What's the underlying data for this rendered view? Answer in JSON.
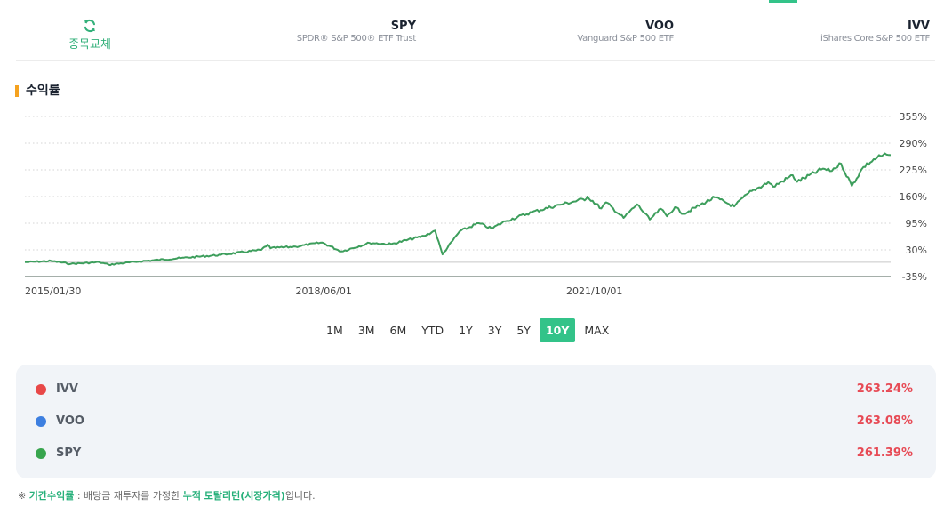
{
  "header": {
    "swap_label": "종목교체",
    "etfs": [
      {
        "ticker": "SPY",
        "name": "SPDR® S&P 500® ETF Trust"
      },
      {
        "ticker": "VOO",
        "name": "Vanguard S&P 500 ETF"
      },
      {
        "ticker": "IVV",
        "name": "iShares Core S&P 500 ETF"
      }
    ]
  },
  "section_title": "수익률",
  "chart_data": {
    "type": "line",
    "title": "",
    "xlabel": "",
    "ylabel": "",
    "x_tick_labels": [
      "2015/01/30",
      "2018/06/01",
      "2021/10/01"
    ],
    "y_tick_labels": [
      "355%",
      "290%",
      "225%",
      "160%",
      "95%",
      "30%",
      "-35%"
    ],
    "ylim": [
      -35,
      355
    ],
    "grid": true,
    "series": [
      {
        "name": "SPY",
        "color": "#3d9e5c",
        "points": [
          [
            "2015/01/30",
            0
          ],
          [
            "2015/05/29",
            3
          ],
          [
            "2015/08/25",
            -4
          ],
          [
            "2015/12/31",
            0
          ],
          [
            "2016/02/11",
            -6
          ],
          [
            "2016/06/30",
            2
          ],
          [
            "2016/12/30",
            10
          ],
          [
            "2017/06/30",
            18
          ],
          [
            "2017/12/29",
            30
          ],
          [
            "2018/01/26",
            43
          ],
          [
            "2018/02/08",
            34
          ],
          [
            "2018/06/01",
            38
          ],
          [
            "2018/09/28",
            48
          ],
          [
            "2018/12/24",
            26
          ],
          [
            "2019/04/30",
            47
          ],
          [
            "2019/08/05",
            44
          ],
          [
            "2019/12/31",
            64
          ],
          [
            "2020/02/19",
            77
          ],
          [
            "2020/03/23",
            19
          ],
          [
            "2020/06/08",
            75
          ],
          [
            "2020/09/02",
            95
          ],
          [
            "2020/10/30",
            82
          ],
          [
            "2020/12/31",
            100
          ],
          [
            "2021/04/30",
            122
          ],
          [
            "2021/09/02",
            140
          ],
          [
            "2021/12/31",
            155
          ],
          [
            "2022/01/04",
            160
          ],
          [
            "2022/03/08",
            131
          ],
          [
            "2022/03/29",
            146
          ],
          [
            "2022/06/16",
            108
          ],
          [
            "2022/08/16",
            141
          ],
          [
            "2022/10/12",
            104
          ],
          [
            "2022/12/01",
            130
          ],
          [
            "2022/12/28",
            112
          ],
          [
            "2023/02/02",
            134
          ],
          [
            "2023/03/13",
            118
          ],
          [
            "2023/07/31",
            158
          ],
          [
            "2023/10/27",
            136
          ],
          [
            "2023/12/29",
            168
          ],
          [
            "2024/03/28",
            195
          ],
          [
            "2024/04/19",
            184
          ],
          [
            "2024/07/16",
            212
          ],
          [
            "2024/08/05",
            196
          ],
          [
            "2024/11/29",
            228
          ],
          [
            "2024/12/31",
            222
          ],
          [
            "2025/02/19",
            240
          ],
          [
            "2025/04/08",
            186
          ],
          [
            "2025/05/30",
            232
          ],
          [
            "2025/07/31",
            255
          ],
          [
            "2025/09/12",
            262
          ],
          [
            "2025/09/30",
            261
          ]
        ]
      }
    ]
  },
  "ranges": {
    "options": [
      "1M",
      "3M",
      "6M",
      "YTD",
      "1Y",
      "3Y",
      "5Y",
      "10Y",
      "MAX"
    ],
    "selected": "10Y"
  },
  "summary": [
    {
      "name": "IVV",
      "value": "263.24%",
      "color": "#e84848"
    },
    {
      "name": "VOO",
      "value": "263.08%",
      "color": "#3d7fe0"
    },
    {
      "name": "SPY",
      "value": "261.39%",
      "color": "#38a54e"
    }
  ],
  "footnote": {
    "prefix": "※ ",
    "term": "기간수익률",
    "middle": " : 배당금 재투자를 가정한 ",
    "highlight": "누적 토탈리턴(시장가격)",
    "suffix": "입니다."
  },
  "colors": {
    "accent": "#33c389",
    "title_bar": "#f5a21f",
    "positive_value": "#e74a55"
  }
}
